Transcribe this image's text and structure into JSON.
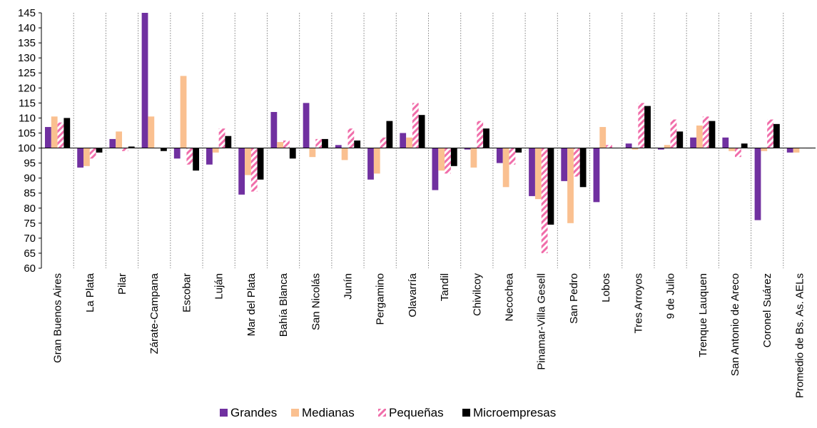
{
  "chart_data": {
    "type": "bar",
    "title": "",
    "xlabel": "",
    "ylabel": "",
    "ylim": [
      60,
      145
    ],
    "baseline": 100,
    "yticks": [
      60,
      65,
      70,
      75,
      80,
      85,
      90,
      95,
      100,
      105,
      110,
      115,
      120,
      125,
      130,
      135,
      140,
      145
    ],
    "grid": "vertical dotted separators between categories",
    "legend_position": "bottom",
    "categories": [
      "Gran Buenos Aires",
      "La Plata",
      "Pilar",
      "Zárate-Campana",
      "Escobar",
      "Luján",
      "Mar del Plata",
      "Bahía Blanca",
      "San Nicolás",
      "Junín",
      "Pergamino",
      "Olavarría",
      "Tandil",
      "Chivilcoy",
      "Necochea",
      "Pinamar-Villa Gesell",
      "San Pedro",
      "Lobos",
      "Tres Arroyos",
      "9 de Julio",
      "Trenque Lauquen",
      "San Antonio de Areco",
      "Coronel Suárez",
      "Promedio de Bs. As. AELs"
    ],
    "series": [
      {
        "name": "Grandes",
        "color": "#7030A0",
        "pattern": "solid",
        "values": [
          107,
          93.5,
          103,
          145,
          96.5,
          94.5,
          84.5,
          112,
          115,
          101,
          89.5,
          105,
          86,
          99.5,
          95,
          84,
          89,
          82,
          101.5,
          99.5,
          103.5,
          103.5,
          76,
          98.5
        ]
      },
      {
        "name": "Medianas",
        "color": "#FAC090",
        "pattern": "solid",
        "values": [
          110.5,
          94,
          105.5,
          110.5,
          124,
          98.5,
          91,
          102,
          97,
          96,
          91.5,
          103.5,
          92.5,
          93.5,
          87,
          83,
          75,
          107,
          99.5,
          101,
          107.5,
          99,
          99,
          98.5
        ]
      },
      {
        "name": "Pequeñas",
        "color": "#F06EAA",
        "pattern": "hatched",
        "values": [
          108.5,
          96.5,
          99,
          100,
          94.5,
          106.5,
          85.5,
          102.5,
          103,
          106.5,
          103.5,
          115,
          91.5,
          109,
          94.5,
          65,
          90.5,
          101,
          115,
          109.5,
          110.5,
          97,
          109.5,
          100
        ]
      },
      {
        "name": "Microempresas",
        "color": "#000000",
        "pattern": "solid",
        "values": [
          110,
          98.5,
          100.5,
          99,
          92.5,
          104,
          89.5,
          96.5,
          103,
          102.5,
          109,
          111,
          94,
          106.5,
          98.5,
          74.5,
          87,
          100,
          114,
          105.5,
          109,
          101.5,
          108,
          100
        ]
      }
    ]
  }
}
